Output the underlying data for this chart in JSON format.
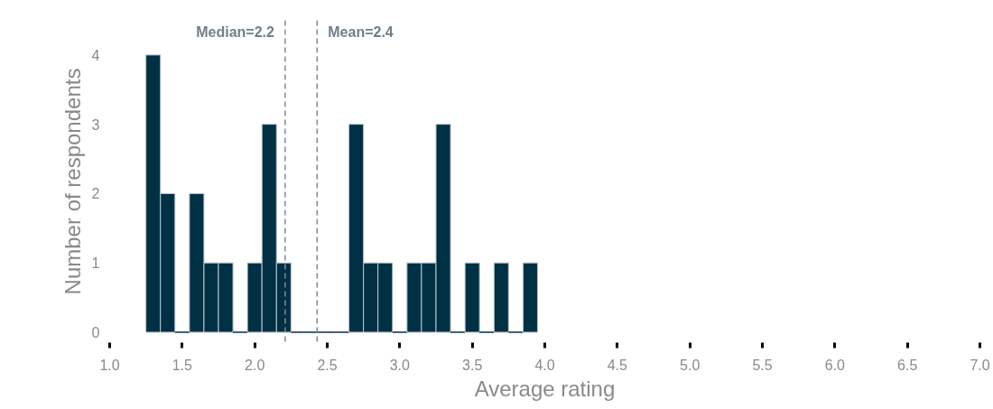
{
  "chart_data": {
    "type": "histogram",
    "xlabel": "Average rating",
    "ylabel": "Number of respondents",
    "bins": [
      1.25,
      1.35,
      1.45,
      1.55,
      1.65,
      1.75,
      1.85,
      1.95,
      2.05,
      2.15,
      2.25,
      2.35,
      2.45,
      2.55,
      2.65,
      2.75,
      2.85,
      2.95,
      3.05,
      3.15,
      3.25,
      3.35,
      3.45,
      3.55,
      3.65,
      3.75,
      3.85,
      3.95
    ],
    "values": [
      4,
      2,
      0,
      2,
      1,
      1,
      0,
      1,
      3,
      1,
      0,
      0,
      0,
      0,
      3,
      1,
      1,
      0,
      1,
      1,
      3,
      0,
      1,
      0,
      1,
      0,
      1
    ],
    "color": "#003044",
    "xlim": [
      1.0,
      7.0
    ],
    "ylim": [
      -0.15,
      4.5
    ],
    "xticks": [
      {
        "value": 1.0,
        "label": "1.0"
      },
      {
        "value": 1.5,
        "label": "1.5"
      },
      {
        "value": 2.0,
        "label": "2.0"
      },
      {
        "value": 2.5,
        "label": "2.5"
      },
      {
        "value": 3.0,
        "label": "3.0"
      },
      {
        "value": 3.5,
        "label": "3.5"
      },
      {
        "value": 4.0,
        "label": "4.0"
      },
      {
        "value": 4.5,
        "label": "4.5"
      },
      {
        "value": 5.0,
        "label": "5.0"
      },
      {
        "value": 5.5,
        "label": "5.5"
      },
      {
        "value": 6.0,
        "label": "6.0"
      },
      {
        "value": 6.5,
        "label": "6.5"
      },
      {
        "value": 7.0,
        "label": "7.0"
      }
    ],
    "yticks": [
      0,
      1,
      2,
      3,
      4
    ],
    "ref_lines": [
      {
        "axis": "x",
        "value": 2.21,
        "label": "Median=2.2",
        "color": "#7f8a96",
        "line_style": "dashed"
      },
      {
        "axis": "x",
        "value": 2.43,
        "label": "Mean=2.4",
        "color": "#7f8a96",
        "line_style": "dashed"
      }
    ],
    "grid": false
  }
}
